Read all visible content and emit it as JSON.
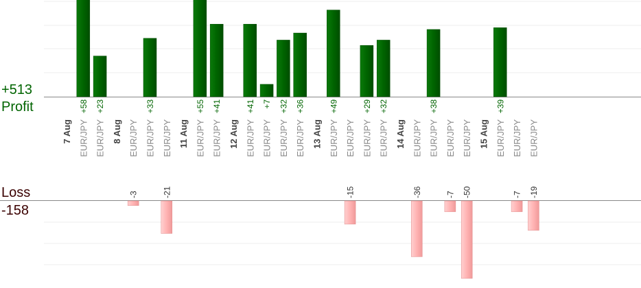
{
  "summary": {
    "profit_total": "+513",
    "profit_label": "Profit",
    "loss_label": "Loss",
    "loss_total": "-158"
  },
  "colors": {
    "profit_bar": "#006400",
    "loss_bar": "#ffb3b3",
    "profit_text": "#006400",
    "loss_text": "#3a0000",
    "grid": "#ececec",
    "axis": "#888888"
  },
  "chart_data": {
    "type": "bar",
    "grid": true,
    "columns": [
      {
        "label": "7 Aug",
        "kind": "date"
      },
      {
        "label": "EUR/JPY",
        "kind": "trade",
        "value": 58
      },
      {
        "label": "EUR/JPY",
        "kind": "trade",
        "value": 23
      },
      {
        "label": "8 Aug",
        "kind": "date"
      },
      {
        "label": "EUR/JPY",
        "kind": "trade",
        "value": -3
      },
      {
        "label": "EUR/JPY",
        "kind": "trade",
        "value": 33
      },
      {
        "label": "EUR/JPY",
        "kind": "trade",
        "value": -21
      },
      {
        "label": "11 Aug",
        "kind": "date"
      },
      {
        "label": "EUR/JPY",
        "kind": "trade",
        "value": 55
      },
      {
        "label": "EUR/JPY",
        "kind": "trade",
        "value": 41
      },
      {
        "label": "12 Aug",
        "kind": "date"
      },
      {
        "label": "EUR/JPY",
        "kind": "trade",
        "value": 41
      },
      {
        "label": "EUR/JPY",
        "kind": "trade",
        "value": 7
      },
      {
        "label": "EUR/JPY",
        "kind": "trade",
        "value": 32
      },
      {
        "label": "EUR/JPY",
        "kind": "trade",
        "value": 36
      },
      {
        "label": "13 Aug",
        "kind": "date"
      },
      {
        "label": "EUR/JPY",
        "kind": "trade",
        "value": 49
      },
      {
        "label": "EUR/JPY",
        "kind": "trade",
        "value": -15
      },
      {
        "label": "EUR/JPY",
        "kind": "trade",
        "value": 29
      },
      {
        "label": "EUR/JPY",
        "kind": "trade",
        "value": 32
      },
      {
        "label": "14 Aug",
        "kind": "date"
      },
      {
        "label": "EUR/JPY",
        "kind": "trade",
        "value": -36
      },
      {
        "label": "EUR/JPY",
        "kind": "trade",
        "value": 38
      },
      {
        "label": "EUR/JPY",
        "kind": "trade",
        "value": -7
      },
      {
        "label": "EUR/JPY",
        "kind": "trade",
        "value": -50
      },
      {
        "label": "15 Aug",
        "kind": "date"
      },
      {
        "label": "EUR/JPY",
        "kind": "trade",
        "value": 39
      },
      {
        "label": "EUR/JPY",
        "kind": "trade",
        "value": -7
      },
      {
        "label": "EUR/JPY",
        "kind": "trade",
        "value": -19
      }
    ]
  }
}
